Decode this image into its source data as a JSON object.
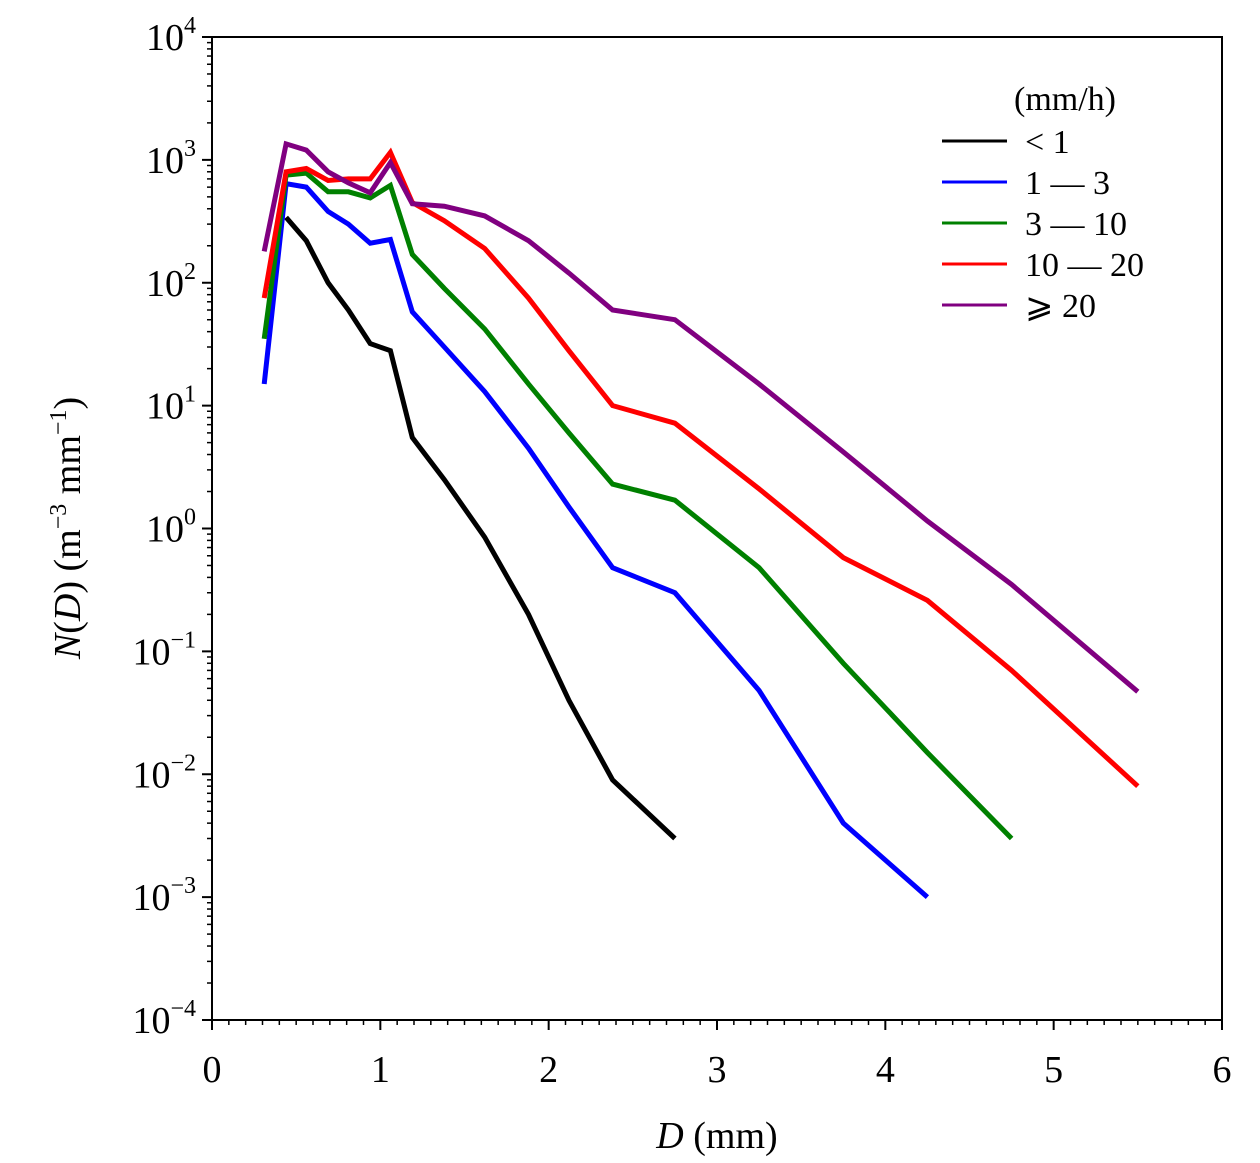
{
  "chart_data": {
    "type": "line",
    "title": "",
    "xlabel": {
      "italic": "D",
      "text": " (mm)"
    },
    "ylabel": {
      "italic": "N",
      "pre": "(",
      "italic2": "D",
      "mid": ") (m",
      "exp1": "−3",
      "mid2": " mm",
      "exp2": "−1",
      "post": ")"
    },
    "xlim": [
      0,
      6
    ],
    "ylim_log10": [
      -4,
      4
    ],
    "y_scale": "log",
    "x_ticks": [
      {
        "value": 0,
        "label": "0"
      },
      {
        "value": 1,
        "label": "1"
      },
      {
        "value": 2,
        "label": "2"
      },
      {
        "value": 3,
        "label": "3"
      },
      {
        "value": 4,
        "label": "4"
      },
      {
        "value": 5,
        "label": "5"
      },
      {
        "value": 6,
        "label": "6"
      }
    ],
    "y_ticks": [
      {
        "exp": -4,
        "base": "10",
        "sup": "−4"
      },
      {
        "exp": -3,
        "base": "10",
        "sup": "−3"
      },
      {
        "exp": -2,
        "base": "10",
        "sup": "−2"
      },
      {
        "exp": -1,
        "base": "10",
        "sup": "−1"
      },
      {
        "exp": 0,
        "base": "10",
        "sup": "0"
      },
      {
        "exp": 1,
        "base": "10",
        "sup": "1"
      },
      {
        "exp": 2,
        "base": "10",
        "sup": "2"
      },
      {
        "exp": 3,
        "base": "10",
        "sup": "3"
      },
      {
        "exp": 4,
        "base": "10",
        "sup": "4"
      }
    ],
    "legend": {
      "title": "(mm/h)",
      "placement": "top-right"
    },
    "series": [
      {
        "name": "< 1",
        "legend_label": "< 1",
        "color": "#000000",
        "x": [
          0.44,
          0.56,
          0.69,
          0.81,
          0.94,
          1.06,
          1.19,
          1.38,
          1.62,
          1.88,
          2.12,
          2.38,
          2.75
        ],
        "y": [
          340,
          220,
          100,
          60,
          32,
          28,
          5.5,
          2.5,
          0.85,
          0.2,
          0.04,
          0.009,
          0.003
        ]
      },
      {
        "name": "1 — 3",
        "legend_label": "1 — 3",
        "color": "#0000ff",
        "x": [
          0.31,
          0.44,
          0.56,
          0.69,
          0.81,
          0.94,
          1.06,
          1.19,
          1.38,
          1.62,
          1.88,
          2.12,
          2.38,
          2.75,
          3.25,
          3.75,
          4.25
        ],
        "y": [
          15,
          640,
          600,
          380,
          300,
          210,
          225,
          58,
          30,
          13,
          4.5,
          1.5,
          0.48,
          0.3,
          0.048,
          0.004,
          0.001
        ]
      },
      {
        "name": "3 — 10",
        "legend_label": "3 — 10",
        "color": "#008000",
        "x": [
          0.31,
          0.44,
          0.56,
          0.69,
          0.81,
          0.94,
          1.06,
          1.19,
          1.38,
          1.62,
          1.88,
          2.12,
          2.38,
          2.75,
          3.25,
          3.75,
          4.25,
          4.75
        ],
        "y": [
          35,
          750,
          780,
          550,
          550,
          490,
          620,
          170,
          90,
          42,
          15,
          6,
          2.3,
          1.7,
          0.48,
          0.08,
          0.015,
          0.003
        ]
      },
      {
        "name": "10 — 20",
        "legend_label": "10 — 20",
        "color": "#ff0000",
        "x": [
          0.31,
          0.44,
          0.56,
          0.69,
          0.81,
          0.94,
          1.06,
          1.19,
          1.38,
          1.62,
          1.88,
          2.12,
          2.38,
          2.75,
          3.25,
          3.75,
          4.25,
          4.75,
          5.5
        ],
        "y": [
          75,
          800,
          850,
          680,
          700,
          700,
          1150,
          450,
          320,
          190,
          75,
          28,
          10,
          7.2,
          2.1,
          0.58,
          0.26,
          0.07,
          0.008
        ]
      },
      {
        "name": "≥ 20",
        "legend_label": "⩾ 20",
        "color": "#800080",
        "x": [
          0.31,
          0.44,
          0.56,
          0.69,
          0.81,
          0.94,
          1.06,
          1.19,
          1.38,
          1.62,
          1.88,
          2.12,
          2.38,
          2.75,
          3.25,
          3.75,
          4.25,
          4.75,
          5.5
        ],
        "y": [
          180,
          1350,
          1200,
          800,
          650,
          540,
          950,
          440,
          420,
          350,
          220,
          120,
          60,
          50,
          15,
          4.2,
          1.15,
          0.35,
          0.047
        ]
      }
    ]
  }
}
